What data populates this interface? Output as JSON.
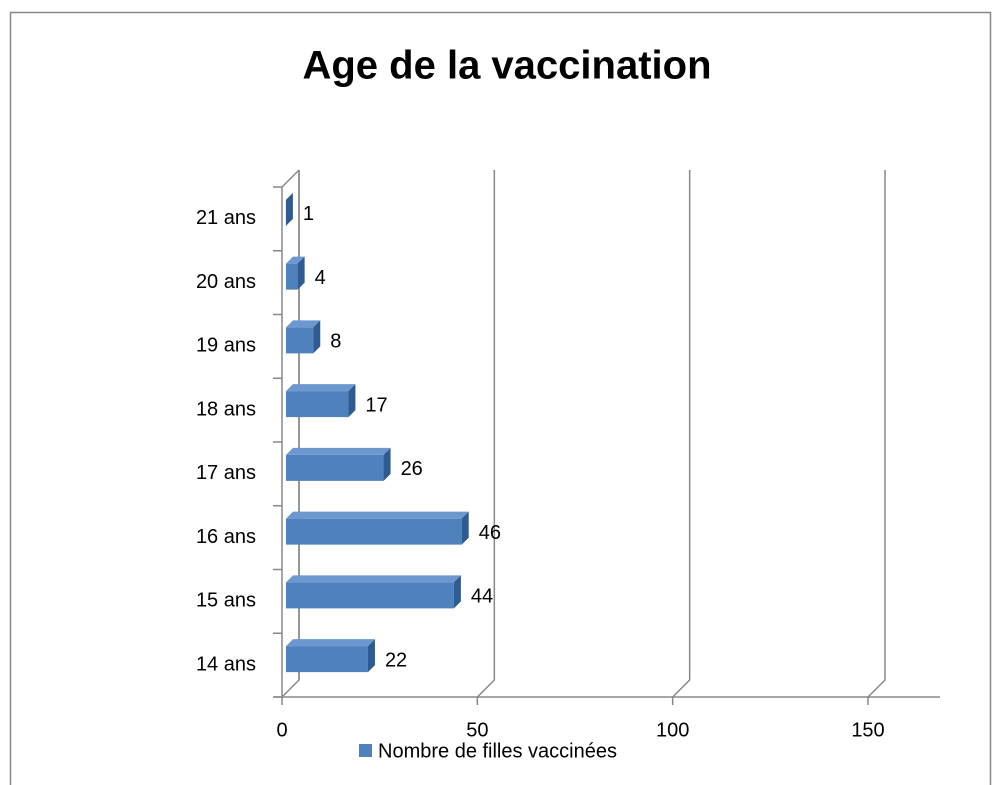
{
  "chart_data": {
    "type": "bar3d_horizontal",
    "title": "Age de la vaccination",
    "categories": [
      "14 ans",
      "15 ans",
      "16 ans",
      "17 ans",
      "18 ans",
      "19 ans",
      "20 ans",
      "21 ans"
    ],
    "series": [
      {
        "name": "Nombre de filles vaccinées",
        "color": "#4f81bd",
        "values": [
          22,
          44,
          46,
          26,
          17,
          8,
          4,
          1
        ]
      }
    ],
    "xlim": [
      0,
      150
    ],
    "xticks": [
      0,
      50,
      100,
      150
    ],
    "grid": true,
    "legend": "bottom"
  }
}
